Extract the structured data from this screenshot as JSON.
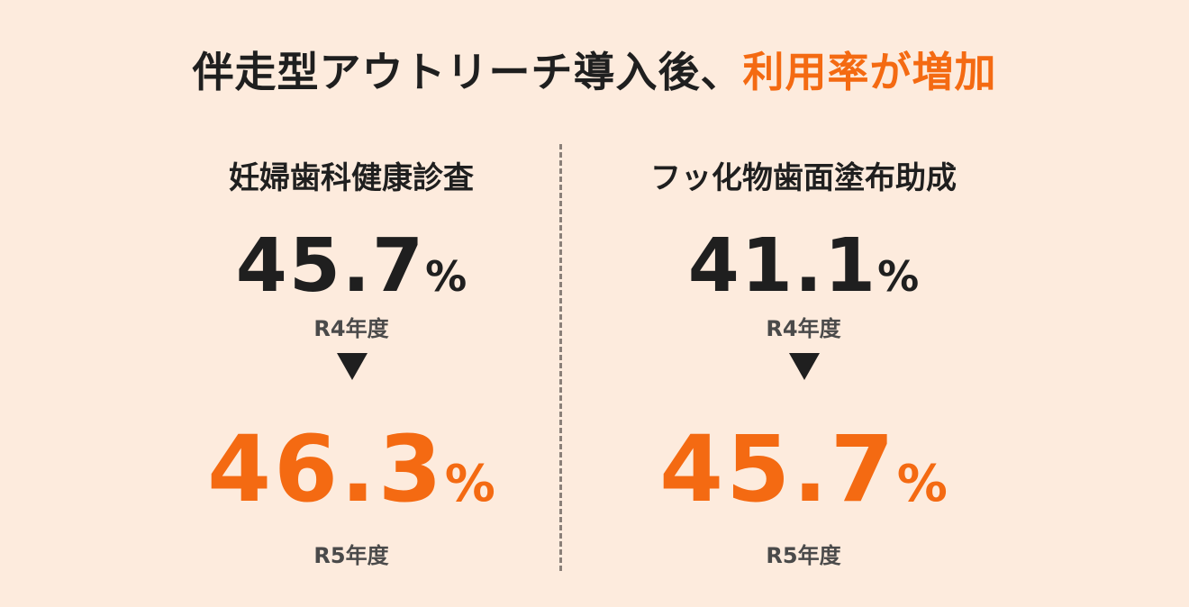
{
  "header": {
    "title_main": "伴走型アウトリーチ導入後、",
    "title_accent": "利用率が増加"
  },
  "columns": [
    {
      "title": "妊婦歯科健康診査",
      "before_value": "45.7",
      "before_unit": "%",
      "before_label": "R4年度",
      "after_value": "46.3",
      "after_unit": "%",
      "after_label": "R5年度"
    },
    {
      "title": "フッ化物歯面塗布助成",
      "before_value": "41.1",
      "before_unit": "%",
      "before_label": "R4年度",
      "after_value": "45.7",
      "after_unit": "%",
      "after_label": "R5年度"
    }
  ],
  "colors": {
    "background": "#fdebdd",
    "accent": "#f46a12",
    "text": "#1f1f1f"
  },
  "icons": {
    "arrow": "down-triangle-icon"
  }
}
